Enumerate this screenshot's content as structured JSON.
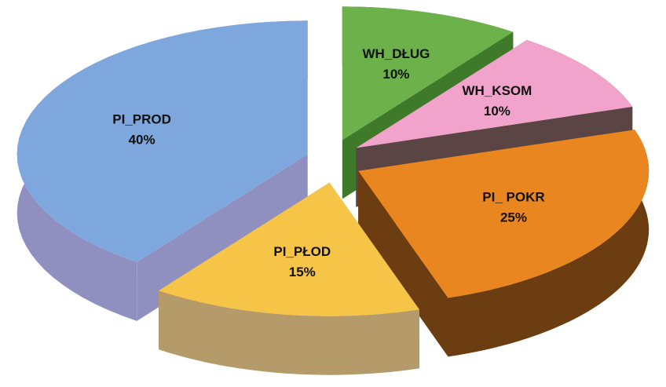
{
  "chart_data": {
    "type": "pie",
    "categories": [
      "WH_DŁUG",
      "WH_KSOM",
      "PI_ POKR",
      "PI_PŁOD",
      "PI_PROD"
    ],
    "values": [
      10,
      10,
      25,
      15,
      40
    ],
    "value_labels": [
      "10%",
      "10%",
      "25%",
      "15%",
      "40%"
    ],
    "colors": [
      "#6cb14a",
      "#f2a3cb",
      "#e9861f",
      "#f6c447",
      "#7ea7dd"
    ],
    "side_colors": [
      "#3f7a2a",
      "#5a4444",
      "#6b3d10",
      "#b59a6a",
      "#8f8fc0"
    ]
  }
}
